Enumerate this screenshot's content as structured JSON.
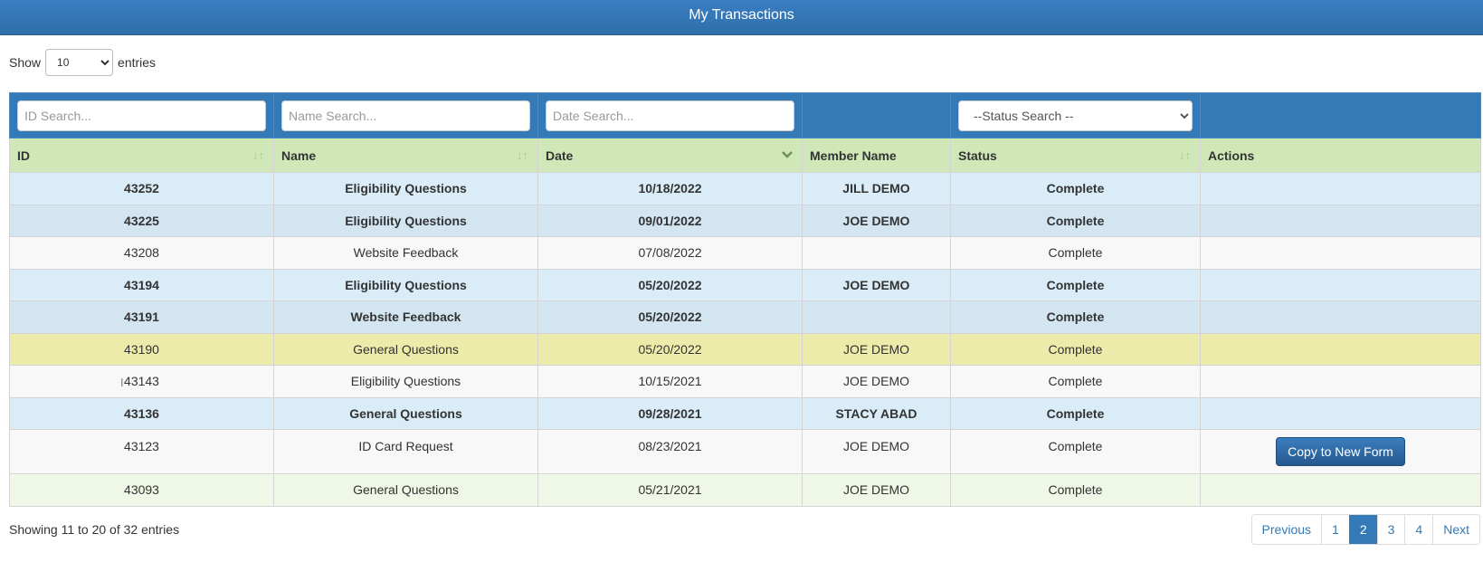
{
  "header": {
    "title": "My Transactions"
  },
  "length": {
    "show_label": "Show",
    "selected": "10",
    "entries_label": "entries"
  },
  "filters": {
    "id_placeholder": "ID Search...",
    "name_placeholder": "Name Search...",
    "date_placeholder": "Date Search...",
    "status_selected": "--Status Search --"
  },
  "columns": [
    "ID",
    "Name",
    "Date",
    "Member Name",
    "Status",
    "Actions"
  ],
  "rows": [
    {
      "id": "43252",
      "name": "Eligibility Questions",
      "date": "10/18/2022",
      "member": "JILL DEMO",
      "status": "Complete"
    },
    {
      "id": "43225",
      "name": "Eligibility Questions",
      "date": "09/01/2022",
      "member": "JOE DEMO",
      "status": "Complete"
    },
    {
      "id": "43208",
      "name": "Website Feedback",
      "date": "07/08/2022",
      "member": "",
      "status": "Complete"
    },
    {
      "id": "43194",
      "name": "Eligibility Questions",
      "date": "05/20/2022",
      "member": "JOE DEMO",
      "status": "Complete"
    },
    {
      "id": "43191",
      "name": "Website Feedback",
      "date": "05/20/2022",
      "member": "",
      "status": "Complete"
    },
    {
      "id": "43190",
      "name": "General Questions",
      "date": "05/20/2022",
      "member": "JOE DEMO",
      "status": "Complete"
    },
    {
      "id": "43143",
      "name": "Eligibility Questions",
      "date": "10/15/2021",
      "member": "JOE DEMO",
      "status": "Complete"
    },
    {
      "id": "43136",
      "name": "General Questions",
      "date": "09/28/2021",
      "member": "STACY ABAD",
      "status": "Complete"
    },
    {
      "id": "43123",
      "name": "ID Card Request",
      "date": "08/23/2021",
      "member": "JOE DEMO",
      "status": "Complete",
      "action": "Copy to New Form"
    },
    {
      "id": "43093",
      "name": "General Questions",
      "date": "05/21/2021",
      "member": "JOE DEMO",
      "status": "Complete"
    }
  ],
  "footer": {
    "info": "Showing 11 to 20 of 32 entries"
  },
  "pagination": {
    "previous": "Previous",
    "pages": [
      "1",
      "2",
      "3",
      "4"
    ],
    "next": "Next"
  }
}
